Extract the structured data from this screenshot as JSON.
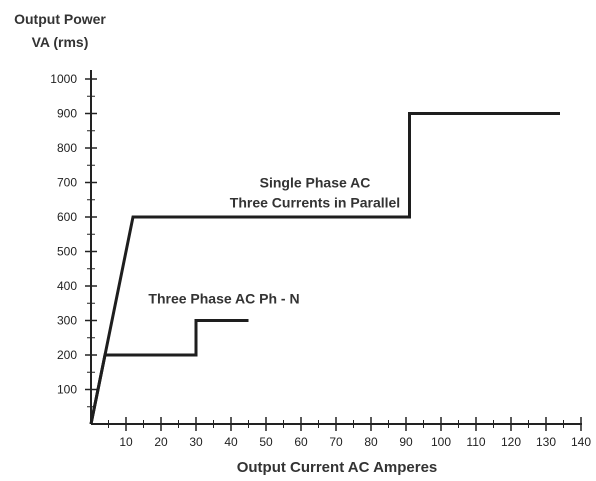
{
  "chart_data": {
    "type": "line",
    "title_lines": [
      "Output Power",
      "VA (rms)"
    ],
    "xlabel": "Output Current AC Amperes",
    "xlim": [
      0,
      140
    ],
    "ylim": [
      0,
      1000
    ],
    "x_ticks": [
      10,
      20,
      30,
      40,
      50,
      60,
      70,
      80,
      90,
      100,
      110,
      120,
      130,
      140
    ],
    "y_ticks": [
      100,
      200,
      300,
      400,
      500,
      600,
      700,
      800,
      900,
      1000
    ],
    "grid": false,
    "series": [
      {
        "name": "Single Phase AC Three Currents in Parallel",
        "points": [
          [
            0,
            0
          ],
          [
            12,
            600
          ],
          [
            91,
            600
          ],
          [
            91,
            900
          ],
          [
            134,
            900
          ]
        ]
      },
      {
        "name": "Three Phase AC Ph - N",
        "points": [
          [
            0,
            0
          ],
          [
            4,
            200
          ],
          [
            30,
            200
          ],
          [
            30,
            300
          ],
          [
            45,
            300
          ]
        ]
      }
    ],
    "annotations": [
      {
        "id": "single",
        "lines": [
          "Single Phase AC",
          "Three Currents in Parallel"
        ],
        "x": 64,
        "y": 685
      },
      {
        "id": "three",
        "lines": [
          "Three Phase AC Ph - N"
        ],
        "x": 38,
        "y": 350
      }
    ]
  }
}
